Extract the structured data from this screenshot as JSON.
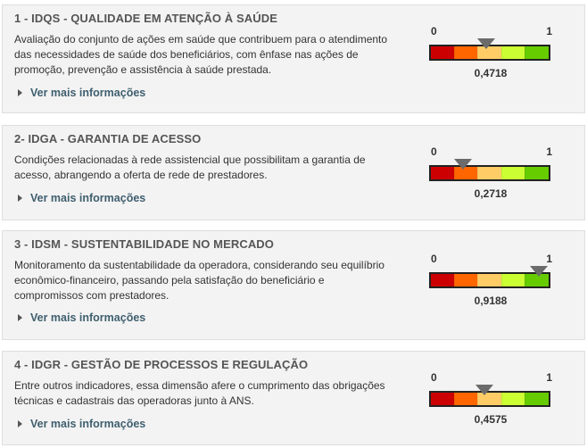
{
  "more_label": "Ver mais informações",
  "gauge_min_label": "0",
  "gauge_max_label": "1",
  "gauge_colors": [
    "#cc0000",
    "#ff6600",
    "#ffcc66",
    "#ccff33",
    "#66cc00"
  ],
  "cards": [
    {
      "title": "1 - IDQS - QUALIDADE EM ATENÇÃO À SAÚDE",
      "description": "Avaliação do conjunto de ações em saúde que contribuem para o atendimento das necessidades de saúde dos beneficiários, com ênfase nas ações de promoção, prevenção e assistência à saúde prestada.",
      "value": 0.4718,
      "value_label": "0,4718"
    },
    {
      "title": "2- IDGA - GARANTIA DE ACESSO",
      "description": "Condições relacionadas à rede assistencial que possibilitam a garantia de acesso, abrangendo a oferta de rede de prestadores.",
      "value": 0.2718,
      "value_label": "0,2718"
    },
    {
      "title": "3 - IDSM - SUSTENTABILIDADE NO MERCADO",
      "description": "Monitoramento da sustentabilidade da operadora, considerando seu equilíbrio econômico-financeiro, passando pela satisfação do beneficiário e compromissos com prestadores.",
      "value": 0.9188,
      "value_label": "0,9188"
    },
    {
      "title": "4 - IDGR - GESTÃO DE PROCESSOS E REGULAÇÃO",
      "description": "Entre outros indicadores, essa dimensão afere o cumprimento das obrigações técnicas e cadastrais das operadoras junto à ANS.",
      "value": 0.4575,
      "value_label": "0,4575"
    }
  ]
}
